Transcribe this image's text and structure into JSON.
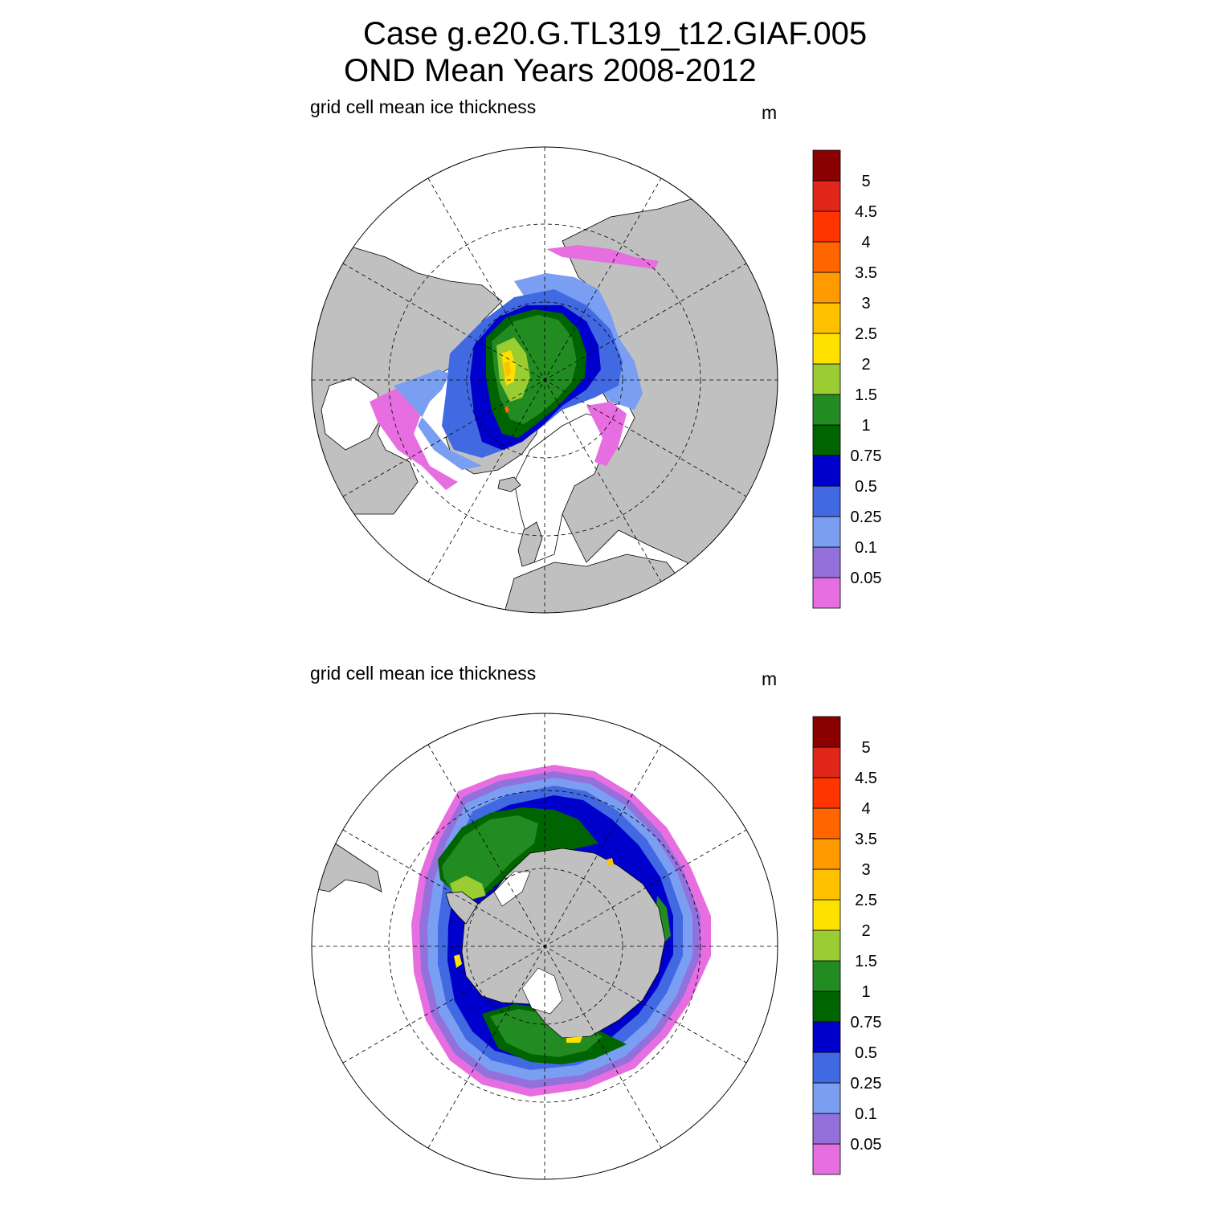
{
  "title": {
    "line1": "Case g.e20.G.TL319_t12.GIAF.005",
    "line2": "OND Mean   Years 2008-2012"
  },
  "panels": [
    {
      "id": "north",
      "variable_label": "grid cell mean ice thickness",
      "units": "m",
      "hemisphere": "Northern",
      "projection": "polar stereographic",
      "graticule": "dashed"
    },
    {
      "id": "south",
      "variable_label": "grid cell mean ice thickness",
      "units": "m",
      "hemisphere": "Southern",
      "projection": "polar stereographic",
      "graticule": "dashed"
    }
  ],
  "colorbar": {
    "levels": [
      "0.05",
      "0.1",
      "0.25",
      "0.5",
      "0.75",
      "1",
      "1.5",
      "2",
      "2.5",
      "3",
      "3.5",
      "4",
      "4.5",
      "5"
    ],
    "colors": [
      "#e76ee0",
      "#9370db",
      "#7a9ef2",
      "#4169e1",
      "#0000cd",
      "#006400",
      "#228b22",
      "#9acd32",
      "#ffe100",
      "#ffc000",
      "#ff9a00",
      "#ff6600",
      "#ff3500",
      "#e0271a",
      "#8b0000"
    ]
  },
  "map_colors": {
    "land": "#c0c0c0",
    "ocean": "#ffffff",
    "coast": "#000000"
  }
}
